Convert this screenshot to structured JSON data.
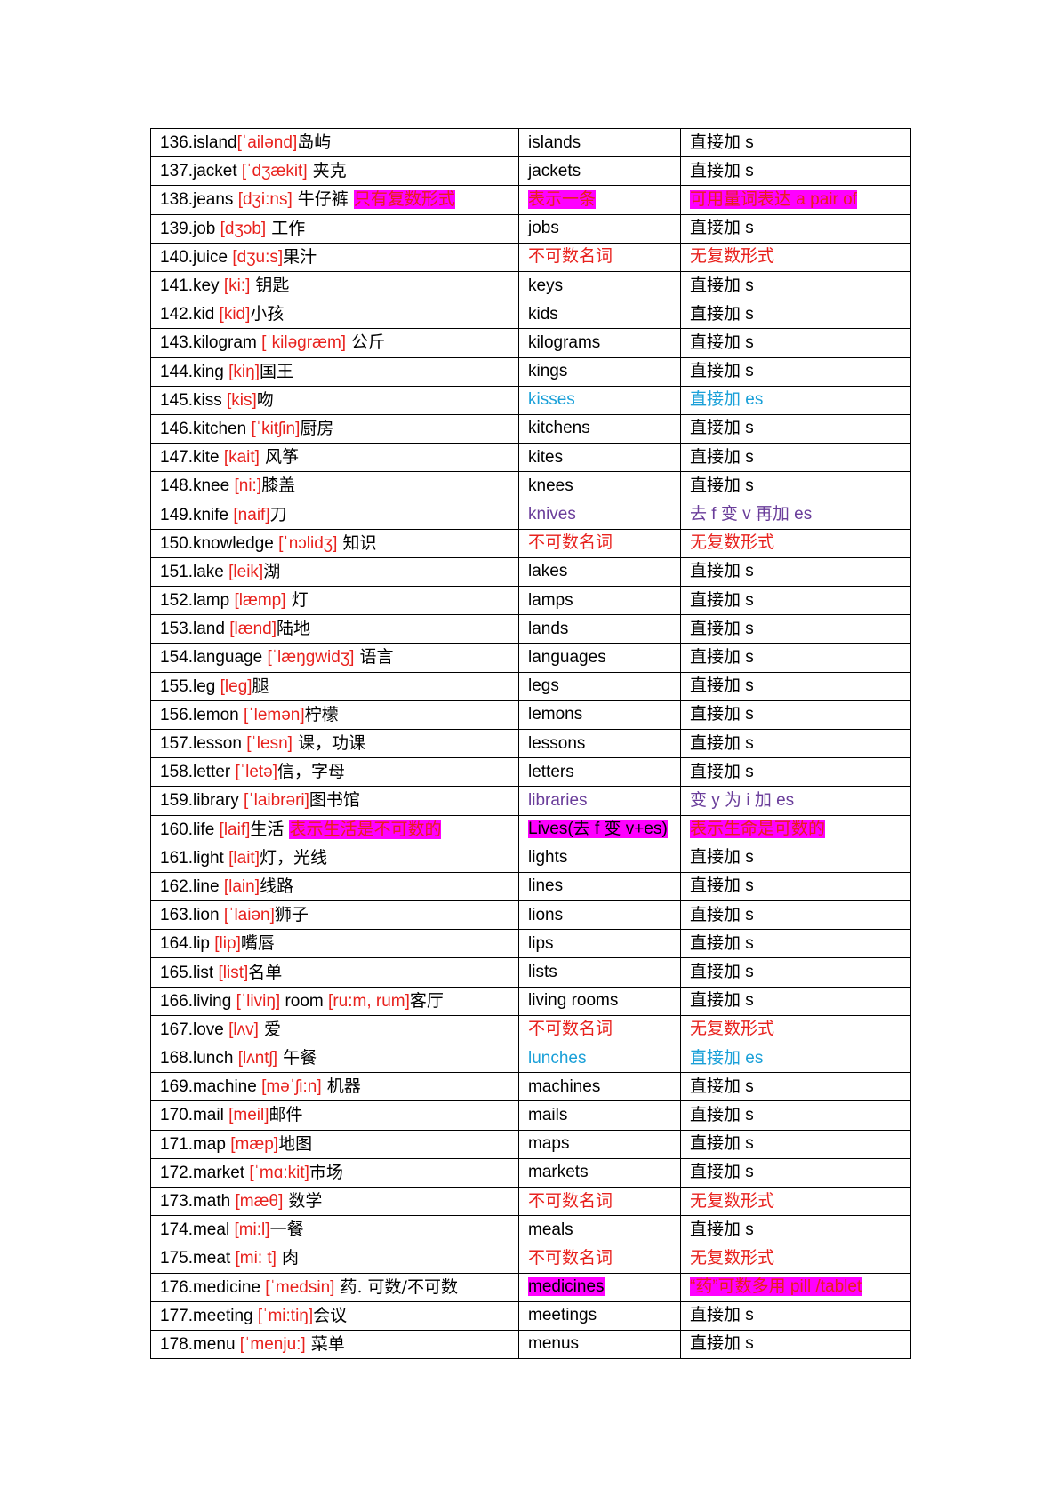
{
  "colors": {
    "phonetic_red": "#e8211d",
    "highlight_magenta": "#ff00ff",
    "cyan": "#1aa0d8",
    "purple": "#6a3d9a"
  },
  "rows": [
    {
      "word": [
        {
          "t": "136.island"
        },
        {
          "t": "[ˈailənd]",
          "s": "red"
        },
        {
          "t": "岛屿",
          "s": "cn"
        }
      ],
      "plural": [
        {
          "t": "islands"
        }
      ],
      "rule": [
        {
          "t": "直接加 s"
        }
      ]
    },
    {
      "word": [
        {
          "t": "137.jacket "
        },
        {
          "t": "[ˈdʒækit]",
          "s": "red"
        },
        {
          "t": " 夹克",
          "s": "cn"
        }
      ],
      "plural": [
        {
          "t": "jackets"
        }
      ],
      "rule": [
        {
          "t": "直接加 s"
        }
      ]
    },
    {
      "word": [
        {
          "t": "138.jeans "
        },
        {
          "t": "[dʒi:ns]",
          "s": "red"
        },
        {
          "t": " 牛仔裤 ",
          "s": "cn"
        },
        {
          "t": "只有复数形式",
          "s": "hl"
        }
      ],
      "plural": [
        {
          "t": "表示一条",
          "s": "hl"
        }
      ],
      "rule": [
        {
          "t": "可用量词表达 a pair of",
          "s": "hl"
        }
      ]
    },
    {
      "word": [
        {
          "t": "139.job "
        },
        {
          "t": "[dʒɔb]",
          "s": "red"
        },
        {
          "t": " 工作",
          "s": "cn"
        }
      ],
      "plural": [
        {
          "t": "jobs"
        }
      ],
      "rule": [
        {
          "t": "直接加 s"
        }
      ]
    },
    {
      "word": [
        {
          "t": "140.juice "
        },
        {
          "t": "[dʒu:s]",
          "s": "red"
        },
        {
          "t": "果汁",
          "s": "cn"
        }
      ],
      "plural": [
        {
          "t": "不可数名词",
          "s": "red"
        }
      ],
      "rule": [
        {
          "t": "无复数形式",
          "s": "red"
        }
      ]
    },
    {
      "word": [
        {
          "t": "141.key "
        },
        {
          "t": "[ki:]",
          "s": "red"
        },
        {
          "t": " 钥匙",
          "s": "cn"
        }
      ],
      "plural": [
        {
          "t": "keys"
        }
      ],
      "rule": [
        {
          "t": "直接加 s"
        }
      ]
    },
    {
      "word": [
        {
          "t": "142.kid "
        },
        {
          "t": "[kid]",
          "s": "red"
        },
        {
          "t": "小孩",
          "s": "cn"
        }
      ],
      "plural": [
        {
          "t": "kids"
        }
      ],
      "rule": [
        {
          "t": "直接加 s"
        }
      ]
    },
    {
      "word": [
        {
          "t": "143.kilogram "
        },
        {
          "t": "[ˈkiləgræm]",
          "s": "red"
        },
        {
          "t": " 公斤",
          "s": "cn"
        }
      ],
      "plural": [
        {
          "t": "kilograms"
        }
      ],
      "rule": [
        {
          "t": "直接加 s"
        }
      ]
    },
    {
      "word": [
        {
          "t": "144.king "
        },
        {
          "t": "[kiŋ]",
          "s": "red"
        },
        {
          "t": "国王",
          "s": "cn"
        }
      ],
      "plural": [
        {
          "t": "kings"
        }
      ],
      "rule": [
        {
          "t": "直接加 s"
        }
      ]
    },
    {
      "word": [
        {
          "t": "145.kiss "
        },
        {
          "t": "[kis]",
          "s": "red"
        },
        {
          "t": "吻",
          "s": "cn"
        }
      ],
      "plural": [
        {
          "t": "kisses",
          "s": "cyan"
        }
      ],
      "rule": [
        {
          "t": "直接加 es",
          "s": "cyan"
        }
      ]
    },
    {
      "word": [
        {
          "t": "146.kitchen "
        },
        {
          "t": "[ˈkitʃin]",
          "s": "red"
        },
        {
          "t": "厨房",
          "s": "cn"
        }
      ],
      "plural": [
        {
          "t": "kitchens"
        }
      ],
      "rule": [
        {
          "t": "直接加 s"
        }
      ]
    },
    {
      "word": [
        {
          "t": "147.kite "
        },
        {
          "t": "[kait]",
          "s": "red"
        },
        {
          "t": " 风筝",
          "s": "cn"
        }
      ],
      "plural": [
        {
          "t": "kites"
        }
      ],
      "rule": [
        {
          "t": "直接加 s"
        }
      ]
    },
    {
      "word": [
        {
          "t": "148.knee "
        },
        {
          "t": "[ni:]",
          "s": "red"
        },
        {
          "t": "膝盖",
          "s": "cn"
        }
      ],
      "plural": [
        {
          "t": "knees"
        }
      ],
      "rule": [
        {
          "t": "直接加 s"
        }
      ]
    },
    {
      "word": [
        {
          "t": "149.knife "
        },
        {
          "t": "[naif]",
          "s": "red"
        },
        {
          "t": "刀",
          "s": "cn"
        }
      ],
      "plural": [
        {
          "t": "knives",
          "s": "purple"
        }
      ],
      "rule": [
        {
          "t": "去 f 变 v 再加 es",
          "s": "purple"
        }
      ]
    },
    {
      "word": [
        {
          "t": "150.knowledge "
        },
        {
          "t": "[ˈnɔlidʒ]",
          "s": "red"
        },
        {
          "t": " 知识",
          "s": "cn"
        }
      ],
      "plural": [
        {
          "t": "不可数名词",
          "s": "red"
        }
      ],
      "rule": [
        {
          "t": "无复数形式",
          "s": "red"
        }
      ]
    },
    {
      "word": [
        {
          "t": "151.lake "
        },
        {
          "t": "[leik]",
          "s": "red"
        },
        {
          "t": "湖",
          "s": "cn"
        }
      ],
      "plural": [
        {
          "t": "lakes"
        }
      ],
      "rule": [
        {
          "t": "直接加 s"
        }
      ]
    },
    {
      "word": [
        {
          "t": "152.lamp "
        },
        {
          "t": "[læmp]",
          "s": "red"
        },
        {
          "t": " 灯",
          "s": "cn"
        }
      ],
      "plural": [
        {
          "t": "lamps"
        }
      ],
      "rule": [
        {
          "t": "直接加 s"
        }
      ]
    },
    {
      "word": [
        {
          "t": "153.land "
        },
        {
          "t": "[lænd]",
          "s": "red"
        },
        {
          "t": "陆地",
          "s": "cn"
        }
      ],
      "plural": [
        {
          "t": "lands"
        }
      ],
      "rule": [
        {
          "t": "直接加 s"
        }
      ]
    },
    {
      "word": [
        {
          "t": "154.language "
        },
        {
          "t": "[ˈlæŋgwidʒ]",
          "s": "red"
        },
        {
          "t": " 语言",
          "s": "cn"
        }
      ],
      "plural": [
        {
          "t": "languages"
        }
      ],
      "rule": [
        {
          "t": "直接加 s"
        }
      ]
    },
    {
      "word": [
        {
          "t": "155.leg "
        },
        {
          "t": "[leg]",
          "s": "red"
        },
        {
          "t": "腿",
          "s": "cn"
        }
      ],
      "plural": [
        {
          "t": "legs"
        }
      ],
      "rule": [
        {
          "t": "直接加 s"
        }
      ]
    },
    {
      "word": [
        {
          "t": "156.lemon "
        },
        {
          "t": "[ˈlemən]",
          "s": "red"
        },
        {
          "t": "柠檬",
          "s": "cn"
        }
      ],
      "plural": [
        {
          "t": "lemons"
        }
      ],
      "rule": [
        {
          "t": "直接加 s"
        }
      ]
    },
    {
      "word": [
        {
          "t": "157.lesson "
        },
        {
          "t": "[ˈlesn]",
          "s": "red"
        },
        {
          "t": " 课，功课",
          "s": "cn"
        }
      ],
      "plural": [
        {
          "t": "lessons"
        }
      ],
      "rule": [
        {
          "t": "直接加 s"
        }
      ]
    },
    {
      "word": [
        {
          "t": "158.letter "
        },
        {
          "t": "[ˈletə]",
          "s": "red"
        },
        {
          "t": "信，字母",
          "s": "cn"
        }
      ],
      "plural": [
        {
          "t": "letters"
        }
      ],
      "rule": [
        {
          "t": "直接加 s"
        }
      ]
    },
    {
      "word": [
        {
          "t": "159.library "
        },
        {
          "t": "[ˈlaibrəri]",
          "s": "red"
        },
        {
          "t": "图书馆",
          "s": "cn"
        }
      ],
      "plural": [
        {
          "t": "libraries",
          "s": "purple"
        }
      ],
      "rule": [
        {
          "t": "变 y 为 i 加 es",
          "s": "purple"
        }
      ]
    },
    {
      "word": [
        {
          "t": "160.life "
        },
        {
          "t": "[laif]",
          "s": "red"
        },
        {
          "t": "生活 ",
          "s": "cn"
        },
        {
          "t": "表示生活是不可数的",
          "s": "hl"
        }
      ],
      "plural": [
        {
          "t": "Lives(去 f 变 v+es)",
          "s": "hlb"
        }
      ],
      "rule": [
        {
          "t": " 表示生命是可数的 ",
          "s": "hl"
        }
      ]
    },
    {
      "word": [
        {
          "t": "161.light "
        },
        {
          "t": "[lait]",
          "s": "red"
        },
        {
          "t": "灯，光线",
          "s": "cn"
        }
      ],
      "plural": [
        {
          "t": "lights"
        }
      ],
      "rule": [
        {
          "t": "直接加 s"
        }
      ]
    },
    {
      "word": [
        {
          "t": "162.line "
        },
        {
          "t": "[lain]",
          "s": "red"
        },
        {
          "t": "线路",
          "s": "cn"
        }
      ],
      "plural": [
        {
          "t": "lines"
        }
      ],
      "rule": [
        {
          "t": "直接加 s"
        }
      ]
    },
    {
      "word": [
        {
          "t": "163.lion "
        },
        {
          "t": "[ˈlaiən]",
          "s": "red"
        },
        {
          "t": "狮子",
          "s": "cn"
        }
      ],
      "plural": [
        {
          "t": "lions"
        }
      ],
      "rule": [
        {
          "t": "直接加 s"
        }
      ]
    },
    {
      "word": [
        {
          "t": "164.lip "
        },
        {
          "t": "[lip]",
          "s": "red"
        },
        {
          "t": "嘴唇",
          "s": "cn"
        }
      ],
      "plural": [
        {
          "t": "lips"
        }
      ],
      "rule": [
        {
          "t": "直接加 s"
        }
      ]
    },
    {
      "word": [
        {
          "t": "165.list "
        },
        {
          "t": "[list]",
          "s": "red"
        },
        {
          "t": "名单",
          "s": "cn"
        }
      ],
      "plural": [
        {
          "t": "lists"
        }
      ],
      "rule": [
        {
          "t": "直接加 s"
        }
      ]
    },
    {
      "word": [
        {
          "t": "166.living "
        },
        {
          "t": "[ˈliviŋ]",
          "s": "red"
        },
        {
          "t": " room "
        },
        {
          "t": "[ru:m, rum]",
          "s": "red"
        },
        {
          "t": "客厅",
          "s": "cn"
        }
      ],
      "plural": [
        {
          "t": "living rooms"
        }
      ],
      "rule": [
        {
          "t": "直接加 s"
        }
      ]
    },
    {
      "word": [
        {
          "t": "167.love "
        },
        {
          "t": "[lʌv]",
          "s": "red"
        },
        {
          "t": " 爱",
          "s": "cn"
        }
      ],
      "plural": [
        {
          "t": "不可数名词",
          "s": "red"
        }
      ],
      "rule": [
        {
          "t": "无复数形式",
          "s": "red"
        }
      ]
    },
    {
      "word": [
        {
          "t": "168.lunch "
        },
        {
          "t": "[lʌntʃ]",
          "s": "red"
        },
        {
          "t": " 午餐",
          "s": "cn"
        }
      ],
      "plural": [
        {
          "t": "lunches",
          "s": "cyan"
        }
      ],
      "rule": [
        {
          "t": "直接加 es",
          "s": "cyan"
        }
      ]
    },
    {
      "word": [
        {
          "t": "169.machine "
        },
        {
          "t": "[məˈʃi:n]",
          "s": "red"
        },
        {
          "t": " 机器",
          "s": "cn"
        }
      ],
      "plural": [
        {
          "t": "machines"
        }
      ],
      "rule": [
        {
          "t": "直接加 s"
        }
      ]
    },
    {
      "word": [
        {
          "t": "170.mail "
        },
        {
          "t": "[meil]",
          "s": "red"
        },
        {
          "t": "邮件",
          "s": "cn"
        }
      ],
      "plural": [
        {
          "t": "mails"
        }
      ],
      "rule": [
        {
          "t": "直接加 s"
        }
      ]
    },
    {
      "word": [
        {
          "t": "171.map "
        },
        {
          "t": "[mæp]",
          "s": "red"
        },
        {
          "t": "地图",
          "s": "cn"
        }
      ],
      "plural": [
        {
          "t": "maps"
        }
      ],
      "rule": [
        {
          "t": "直接加 s"
        }
      ]
    },
    {
      "word": [
        {
          "t": "172.market "
        },
        {
          "t": "[ˈmɑ:kit]",
          "s": "red"
        },
        {
          "t": "市场",
          "s": "cn"
        }
      ],
      "plural": [
        {
          "t": "markets"
        }
      ],
      "rule": [
        {
          "t": "直接加 s"
        }
      ]
    },
    {
      "word": [
        {
          "t": "173.math "
        },
        {
          "t": "[mæθ]",
          "s": "red"
        },
        {
          "t": " 数学",
          "s": "cn"
        }
      ],
      "plural": [
        {
          "t": "不可数名词",
          "s": "red"
        }
      ],
      "rule": [
        {
          "t": "无复数形式",
          "s": "red"
        }
      ]
    },
    {
      "word": [
        {
          "t": "174.meal "
        },
        {
          "t": "[mi:l]",
          "s": "red"
        },
        {
          "t": "一餐",
          "s": "cn"
        }
      ],
      "plural": [
        {
          "t": "meals"
        }
      ],
      "rule": [
        {
          "t": "直接加 s"
        }
      ]
    },
    {
      "word": [
        {
          "t": "175.meat "
        },
        {
          "t": "[mi: t]",
          "s": "red"
        },
        {
          "t": " 肉",
          "s": "cn"
        }
      ],
      "plural": [
        {
          "t": "不可数名词",
          "s": "red"
        }
      ],
      "rule": [
        {
          "t": "无复数形式",
          "s": "red"
        }
      ]
    },
    {
      "word": [
        {
          "t": "176.medicine "
        },
        {
          "t": "[ˈmedsin]",
          "s": "red"
        },
        {
          "t": " 药. 可数/不可数",
          "s": "cn"
        }
      ],
      "plural": [
        {
          "t": "medicines",
          "s": "hlb"
        }
      ],
      "rule": [
        {
          "t": "“药”可数多用 pill /tablet",
          "s": "hl"
        }
      ]
    },
    {
      "word": [
        {
          "t": "177.meeting "
        },
        {
          "t": "[ˈmi:tiŋ]",
          "s": "red"
        },
        {
          "t": "会议",
          "s": "cn"
        }
      ],
      "plural": [
        {
          "t": "meetings"
        }
      ],
      "rule": [
        {
          "t": "直接加 s"
        }
      ]
    },
    {
      "word": [
        {
          "t": "178.menu "
        },
        {
          "t": "[ˈmenju:]",
          "s": "red"
        },
        {
          "t": " 菜单",
          "s": "cn"
        }
      ],
      "plural": [
        {
          "t": "menus"
        }
      ],
      "rule": [
        {
          "t": "直接加 s"
        }
      ]
    }
  ]
}
